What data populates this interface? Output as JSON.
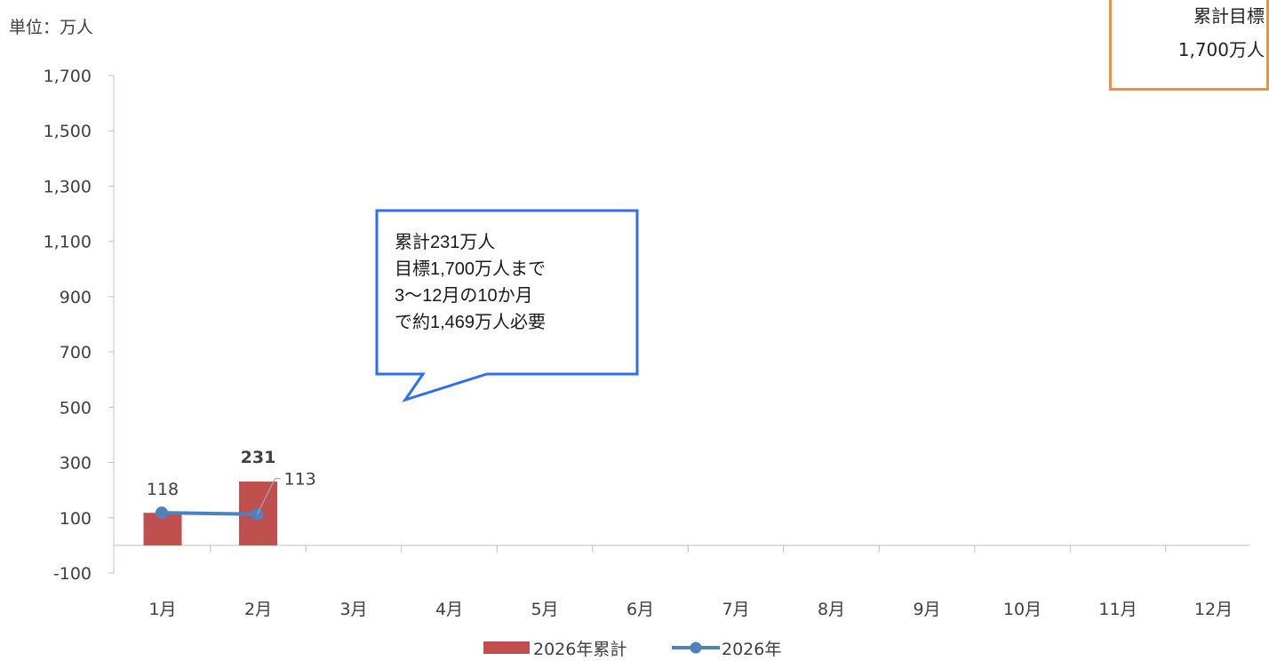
{
  "unit_label": "単位：万人",
  "target_box": {
    "line1": "累計目標",
    "line2": "1,700万人",
    "border_color": "#F0913A"
  },
  "callout": {
    "lines": [
      "累計231万人",
      "目標1,700万人まで",
      "3〜12月の10か月",
      "で約1,469万人必要"
    ],
    "border_color": "#2F6FEF"
  },
  "legend": {
    "bar_label": "2026年累計",
    "line_label": "2026年"
  },
  "chart_data": {
    "type": "bar",
    "categories": [
      "1月",
      "2月",
      "3月",
      "4月",
      "5月",
      "6月",
      "7月",
      "8月",
      "9月",
      "10月",
      "11月",
      "12月"
    ],
    "series": [
      {
        "name": "2026年累計",
        "type": "bar",
        "color": "#C0504D",
        "values": [
          118,
          231,
          null,
          null,
          null,
          null,
          null,
          null,
          null,
          null,
          null,
          null
        ],
        "data_labels": [
          "118",
          "231"
        ]
      },
      {
        "name": "2026年",
        "type": "line",
        "color": "#4F81BD",
        "values": [
          118,
          113,
          null,
          null,
          null,
          null,
          null,
          null,
          null,
          null,
          null,
          null
        ],
        "data_labels": [
          "113"
        ]
      }
    ],
    "y_ticks": [
      "1,700",
      "1,500",
      "1,300",
      "1,100",
      "900",
      "700",
      "500",
      "300",
      "100",
      "-100"
    ],
    "ylim": [
      -100,
      1700
    ],
    "grid": false
  }
}
